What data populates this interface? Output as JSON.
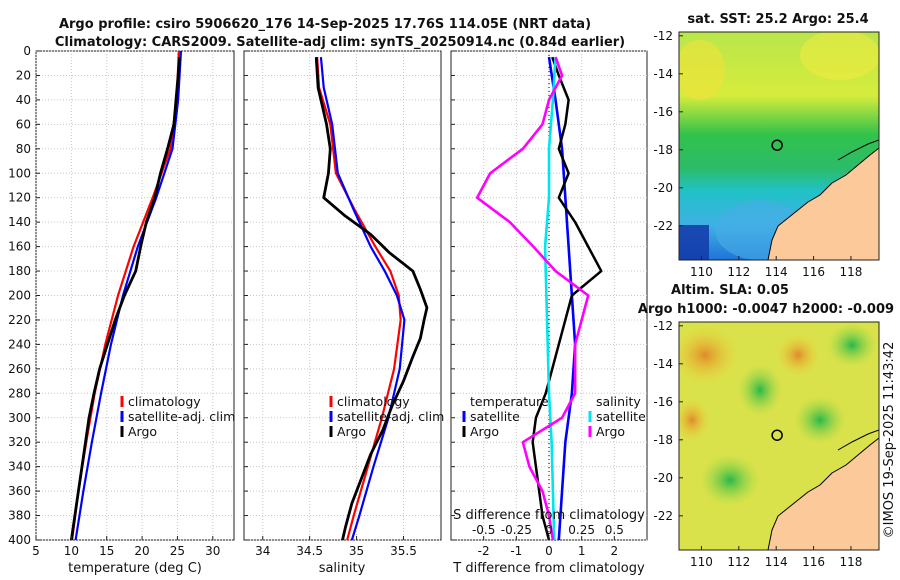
{
  "title": {
    "line1": "Argo profile: csiro 5906620_176 14-Sep-2025 17.76S 114.05E (NRT data)",
    "line2": "Climatology: CARS2009. Satellite-adj clim: synTS_20250914.nc (0.84d earlier)"
  },
  "credit": "©IMOS 19-Sep-2025 11:43:42",
  "colors": {
    "climatology": "#ff0000",
    "satellite": "#0000ff",
    "argo": "#000000",
    "argo_salinity": "#ff00ff",
    "sat_salinity": "#00e5ee"
  },
  "chart_data": [
    {
      "type": "line",
      "id": "temperature",
      "xlabel": "temperature (deg C)",
      "ylabel": "",
      "xlim": [
        5,
        33
      ],
      "ylim": [
        400,
        0
      ],
      "xticks": [
        5,
        10,
        15,
        20,
        25,
        30
      ],
      "yticks": [
        0,
        20,
        40,
        60,
        80,
        100,
        120,
        140,
        160,
        180,
        200,
        220,
        240,
        260,
        280,
        300,
        320,
        340,
        360,
        380,
        400
      ],
      "legend": [
        "climatology",
        "satellite-adj. clim",
        "Argo"
      ],
      "series": [
        {
          "name": "climatology",
          "depth": [
            0,
            40,
            80,
            120,
            160,
            200,
            240,
            280,
            320,
            360,
            400
          ],
          "values": [
            25.2,
            24.9,
            24.0,
            21.5,
            18.8,
            16.6,
            14.8,
            13.3,
            12.1,
            11.0,
            10.1
          ]
        },
        {
          "name": "satellite-adj. clim",
          "depth": [
            0,
            40,
            80,
            120,
            160,
            200,
            240,
            280,
            320,
            360,
            400
          ],
          "values": [
            25.5,
            25.1,
            24.3,
            22.0,
            19.4,
            17.3,
            15.6,
            14.2,
            12.9,
            11.7,
            10.6
          ]
        },
        {
          "name": "Argo",
          "depth": [
            5,
            20,
            40,
            60,
            80,
            100,
            120,
            140,
            160,
            180,
            200,
            220,
            240,
            260,
            280,
            300,
            320,
            340,
            360,
            380,
            400
          ],
          "values": [
            25.3,
            25.1,
            24.8,
            24.5,
            23.6,
            22.6,
            21.8,
            20.6,
            19.8,
            19.1,
            17.5,
            16.2,
            15.1,
            14.0,
            13.2,
            12.5,
            12.0,
            11.5,
            11.0,
            10.5,
            10.0
          ]
        }
      ]
    },
    {
      "type": "line",
      "id": "salinity",
      "xlabel": "salinity",
      "ylabel": "",
      "xlim": [
        33.8,
        35.9
      ],
      "ylim": [
        400,
        0
      ],
      "xticks": [
        34,
        34.5,
        35,
        35.5
      ],
      "xticklabels": [
        "34",
        "34.5",
        "35",
        "35.5"
      ],
      "legend": [
        "climatology",
        "satellite-adj. clim",
        "Argo"
      ],
      "series": [
        {
          "name": "climatology",
          "depth": [
            5,
            30,
            60,
            100,
            130,
            160,
            180,
            200,
            220,
            260,
            300,
            340,
            380,
            400
          ],
          "values": [
            34.58,
            34.6,
            34.72,
            34.78,
            34.98,
            35.2,
            35.36,
            35.45,
            35.47,
            35.4,
            35.27,
            35.12,
            34.97,
            34.9
          ]
        },
        {
          "name": "satellite-adj. clim",
          "depth": [
            5,
            30,
            60,
            100,
            130,
            160,
            180,
            200,
            220,
            260,
            300,
            340,
            380,
            400
          ],
          "values": [
            34.62,
            34.65,
            34.74,
            34.8,
            34.97,
            35.15,
            35.3,
            35.43,
            35.51,
            35.46,
            35.34,
            35.18,
            35.03,
            34.95
          ]
        },
        {
          "name": "Argo",
          "depth": [
            5,
            30,
            60,
            80,
            100,
            120,
            135,
            150,
            165,
            180,
            195,
            210,
            220,
            235,
            250,
            270,
            290,
            310,
            330,
            350,
            370,
            390,
            400
          ],
          "values": [
            34.57,
            34.59,
            34.68,
            34.72,
            34.7,
            34.65,
            34.88,
            35.15,
            35.35,
            35.6,
            35.68,
            35.75,
            35.72,
            35.68,
            35.6,
            35.5,
            35.38,
            35.28,
            35.15,
            35.05,
            34.95,
            34.88,
            34.85
          ]
        }
      ]
    },
    {
      "type": "line",
      "id": "difference",
      "xlabel": "T difference from climatology",
      "xlabel_top": "S difference from climatology",
      "xlim": [
        -3,
        3
      ],
      "ylim": [
        400,
        0
      ],
      "xticks": [
        -2,
        -1,
        0,
        1,
        2
      ],
      "xticklabels": [
        "-2",
        "-1",
        "0",
        "1",
        "2"
      ],
      "s_ticks": [
        -0.5,
        -0.25,
        0,
        0.25,
        0.5
      ],
      "s_ticklabels": [
        "-0.5",
        "-0.25",
        "0",
        "0.25",
        "0.5"
      ],
      "legend_temperature": {
        "title": "temperature",
        "items": [
          "satellite",
          "Argo"
        ]
      },
      "legend_salinity": {
        "title": "salinity",
        "items": [
          "satellite",
          "Argo"
        ]
      },
      "series": [
        {
          "name": "temperature satellite",
          "depth": [
            5,
            40,
            80,
            120,
            160,
            200,
            240,
            280,
            320,
            360,
            400
          ],
          "values": [
            0,
            0.2,
            0.4,
            0.5,
            0.6,
            0.7,
            0.8,
            0.7,
            0.5,
            0.4,
            0.3
          ]
        },
        {
          "name": "temperature Argo",
          "depth": [
            5,
            20,
            40,
            60,
            80,
            100,
            120,
            140,
            160,
            180,
            200,
            220,
            240,
            260,
            280,
            300,
            320,
            340,
            360,
            380,
            400
          ],
          "values": [
            0.1,
            0.3,
            0.6,
            0.5,
            0.3,
            0.6,
            0.3,
            0.8,
            1.2,
            1.6,
            0.7,
            0.5,
            0.3,
            0.1,
            -0.1,
            -0.4,
            -0.5,
            -0.4,
            -0.3,
            -0.2,
            0
          ]
        },
        {
          "name": "salinity satellite",
          "depth": [
            5,
            40,
            80,
            120,
            160,
            200,
            240,
            280,
            320,
            360,
            400
          ],
          "values": [
            0.05,
            0.03,
            0.0,
            0.0,
            -0.03,
            -0.02,
            -0.01,
            0.0,
            0.02,
            0.03,
            0.04
          ]
        },
        {
          "name": "salinity Argo",
          "depth": [
            5,
            20,
            40,
            60,
            80,
            100,
            120,
            140,
            160,
            180,
            200,
            220,
            240,
            260,
            280,
            300,
            320,
            340,
            360,
            380,
            400
          ],
          "values": [
            0.05,
            0.1,
            0.0,
            -0.05,
            -0.2,
            -0.45,
            -0.55,
            -0.3,
            -0.12,
            0.05,
            0.3,
            0.25,
            0.2,
            0.2,
            0.2,
            0.1,
            -0.2,
            -0.15,
            -0.05,
            0.0,
            0.03
          ]
        }
      ]
    },
    {
      "type": "heatmap",
      "id": "sst_map",
      "title": "sat. SST: 25.2 Argo: 25.4",
      "xticks": [
        110,
        112,
        114,
        116,
        118
      ],
      "yticks": [
        -12,
        -14,
        -16,
        -18,
        -20,
        -22
      ],
      "xlim": [
        108.8,
        119.5
      ],
      "ylim": [
        -23.8,
        -11.8
      ],
      "argo_position": {
        "lon": 114.05,
        "lat": -17.76
      }
    },
    {
      "type": "heatmap",
      "id": "sla_map",
      "title1": "Altim. SLA: 0.05",
      "title2": "Argo h1000: -0.0047 h2000: -0.009",
      "xticks": [
        110,
        112,
        114,
        116,
        118
      ],
      "yticks": [
        -12,
        -14,
        -16,
        -18,
        -20,
        -22
      ],
      "xlim": [
        108.8,
        119.5
      ],
      "ylim": [
        -23.8,
        -11.8
      ],
      "argo_position": {
        "lon": 114.05,
        "lat": -17.76
      }
    }
  ]
}
